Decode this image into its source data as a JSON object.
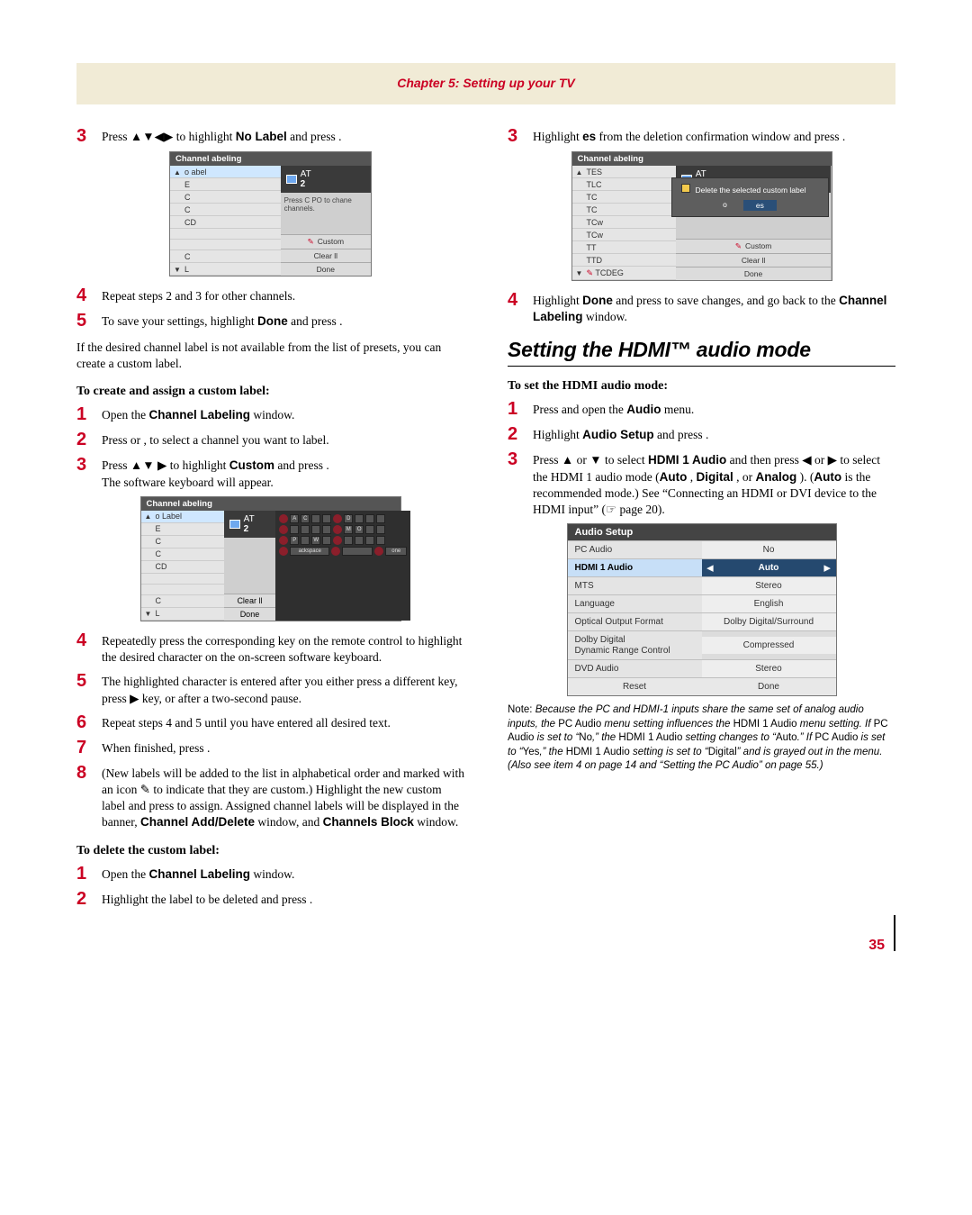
{
  "chapter_title": "Chapter 5: Setting up your TV",
  "page_number": "35",
  "left": {
    "steps_a": {
      "s3": "Press ▲▼◀▶ to highlight <b>No Label</b> and press .",
      "s4": "Repeat steps 2 and 3 for other channels.",
      "s5": "To save your settings, highlight <b>Done</b> and press ."
    },
    "osd1": {
      "title": "Channel abeling",
      "rows": [
        "o abel",
        "E",
        "C",
        "C",
        "CD",
        "",
        "",
        "C",
        "L"
      ],
      "preview_label": "AT",
      "preview_num": "2",
      "hint": "Press C PO to chane channels.",
      "btn_custom": "Custom",
      "btn_clear": "Clear ll",
      "btn_done": "Done"
    },
    "para_presets": "If the desired channel label is not available from the list of presets, you can create a custom label.",
    "subhead_create": "To create and assign a custom label:",
    "steps_b": {
      "s1": "Open the <b>Channel Labeling</b> window.",
      "s2": "Press   or ,  to select a channel you want to label.",
      "s3_a": "Press ▲▼ ▶ to highlight <b>Custom</b> and press .",
      "s3_b": "The software keyboard will appear."
    },
    "osd2": {
      "title": "Channel abeling",
      "rows": [
        "o Label",
        "E",
        "C",
        "C",
        "CD",
        "",
        "",
        "C",
        "L"
      ],
      "preview_label": "AT",
      "preview_num": "2",
      "btn_clear": "Clear ll",
      "btn_done": "Done",
      "back": "ackspace",
      "done_key": "one"
    },
    "steps_c": {
      "s4": "Repeatedly press the corresponding key on the remote control to highlight the desired character on the on-screen software keyboard.",
      "s5": "The highlighted character is entered after you either press a different key, press ▶ key, or after a two-second pause.",
      "s6": "Repeat steps 4 and 5 until you have entered all desired text.",
      "s7": "When finished, press .",
      "s8": "(New labels will be added to the list in alphabetical order and marked with an icon ✎ to indicate that they are custom.) Highlight the new custom label and press  to assign. Assigned channel labels will be displayed in the banner, <b>Channel Add/Delete</b> window, and <b>Channels Block</b> window."
    },
    "subhead_delete": "To delete the custom label:",
    "steps_d": {
      "s1": "Open the <b>Channel Labeling</b> window.",
      "s2": "Highlight the label to be deleted and press ."
    }
  },
  "right": {
    "steps_a": {
      "s3": "Highlight <b>es</b> from the deletion confirmation window and press ."
    },
    "osd3": {
      "title": "Channel abeling",
      "rows": [
        "TES",
        "TLC",
        "TC",
        "TC",
        "TCw",
        "TCw",
        "TT",
        "TTD",
        "TCDEG"
      ],
      "preview_label": "AT",
      "preview_num": "2",
      "popup_msg": "Delete the selected    custom label",
      "popup_o": "o",
      "popup_es": "es",
      "btn_custom": "Custom",
      "btn_clear": "Clear ll",
      "btn_done": "Done"
    },
    "step4": "Highlight <b>Done</b> and press  to save changes, and go back to the <b>Channel Labeling</b> window.",
    "section_title": "Setting the HDMI™ audio mode",
    "subhead_set": "To set the HDMI audio mode:",
    "steps_b": {
      "s1": "Press   and open the <b>Audio</b> menu.",
      "s2": "Highlight <b>Audio Setup</b> and press .",
      "s3": "Press ▲ or ▼ to select <b>HDMI 1 Audio</b> and then press ◀ or ▶ to select the HDMI 1 audio mode (<b>Auto</b> , <b>Digital</b> , or <b>Analog</b> ). (<b>Auto</b> is the recommended mode.) See “Connecting an HDMI or DVI device to the HDMI input” (☞ page 20)."
    },
    "aud": {
      "title": "Audio Setup",
      "rows": [
        {
          "k": "PC Audio",
          "v": "No"
        },
        {
          "k": "HDMI 1 Audio",
          "v": "Auto",
          "sel": true
        },
        {
          "k": "MTS",
          "v": "Stereo"
        },
        {
          "k": "Language",
          "v": "English"
        },
        {
          "k": "Optical Output Format",
          "v": "Dolby Digital/Surround"
        },
        {
          "k": "Dolby Digital\nDynamic Range Control",
          "v": "Compressed",
          "dbl": true
        },
        {
          "k": "DVD Audio",
          "v": "Stereo"
        }
      ],
      "foot_l": "Reset",
      "foot_r": "Done"
    },
    "note_label": "Note:",
    "note_body": " Because the PC and HDMI-1 inputs share the same set of analog audio inputs, the <r>PC Audio</r> menu setting influences the <r>HDMI 1 Audio</r> menu setting. If <r>PC Audio</r> is set to “<r>No</r>,” the <r>HDMI 1 Audio</r> setting changes to “<r>Auto</r>.” If <r>PC Audio</r> is set to “<r>Yes</r>,” the <r>HDMI 1 Audio</r> setting is set to “<r>Digital</r>” and is grayed out in the menu. (Also see item 4 on page 14 and “Setting the PC Audio” on page 55.)"
  }
}
